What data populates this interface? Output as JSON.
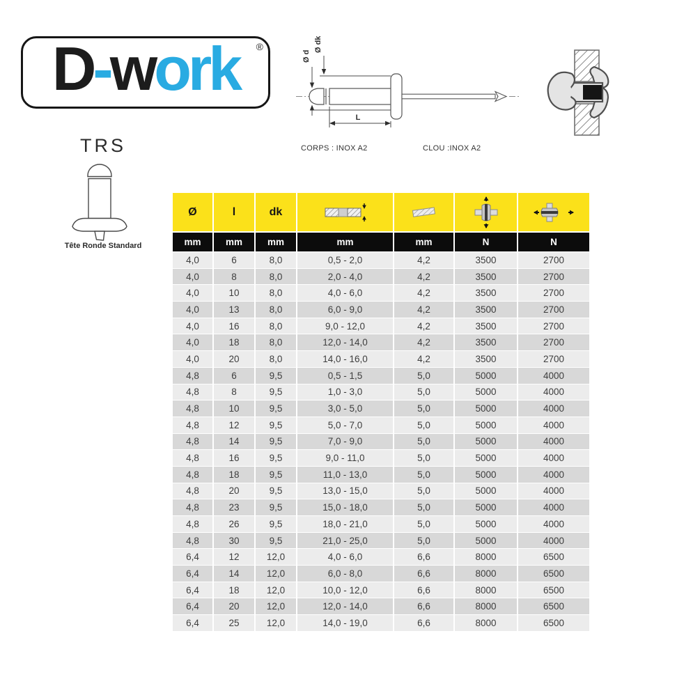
{
  "logo": {
    "part_d": "D",
    "part_hyphen": "-",
    "part_w": "w",
    "part_ork": "ork",
    "registered_mark": "®"
  },
  "product": {
    "code": "TRS",
    "head_type_caption": "Tête Ronde Standard"
  },
  "diagram": {
    "label_d": "Ø d",
    "label_dk": "Ø dk",
    "label_length": "L",
    "body_material": "CORPS : INOX A2",
    "nail_material": "CLOU :INOX A2"
  },
  "colors": {
    "accent_yellow": "#fbe11a",
    "header_black": "#0c0c0c",
    "row_light": "#ececec",
    "row_dark": "#d8d8d8",
    "logo_blue": "#29abe2",
    "logo_black": "#1c1c1c"
  },
  "table": {
    "columns": [
      {
        "label": "Ø",
        "unit": "mm",
        "icon": null
      },
      {
        "label": "l",
        "unit": "mm",
        "icon": null
      },
      {
        "label": "dk",
        "unit": "mm",
        "icon": null
      },
      {
        "label": "",
        "unit": "mm",
        "icon": "clamping-range-icon"
      },
      {
        "label": "",
        "unit": "mm",
        "icon": "drill-hole-diameter-icon"
      },
      {
        "label": "",
        "unit": "N",
        "icon": "shear-strength-icon"
      },
      {
        "label": "",
        "unit": "N",
        "icon": "tensile-strength-icon"
      }
    ],
    "rows": [
      [
        "4,0",
        "6",
        "8,0",
        "0,5 - 2,0",
        "4,2",
        "3500",
        "2700"
      ],
      [
        "4,0",
        "8",
        "8,0",
        "2,0 - 4,0",
        "4,2",
        "3500",
        "2700"
      ],
      [
        "4,0",
        "10",
        "8,0",
        "4,0 - 6,0",
        "4,2",
        "3500",
        "2700"
      ],
      [
        "4,0",
        "13",
        "8,0",
        "6,0 - 9,0",
        "4,2",
        "3500",
        "2700"
      ],
      [
        "4,0",
        "16",
        "8,0",
        "9,0 - 12,0",
        "4,2",
        "3500",
        "2700"
      ],
      [
        "4,0",
        "18",
        "8,0",
        "12,0 - 14,0",
        "4,2",
        "3500",
        "2700"
      ],
      [
        "4,0",
        "20",
        "8,0",
        "14,0 - 16,0",
        "4,2",
        "3500",
        "2700"
      ],
      [
        "4,8",
        "6",
        "9,5",
        "0,5 - 1,5",
        "5,0",
        "5000",
        "4000"
      ],
      [
        "4,8",
        "8",
        "9,5",
        "1,0 - 3,0",
        "5,0",
        "5000",
        "4000"
      ],
      [
        "4,8",
        "10",
        "9,5",
        "3,0 - 5,0",
        "5,0",
        "5000",
        "4000"
      ],
      [
        "4,8",
        "12",
        "9,5",
        "5,0 - 7,0",
        "5,0",
        "5000",
        "4000"
      ],
      [
        "4,8",
        "14",
        "9,5",
        "7,0 - 9,0",
        "5,0",
        "5000",
        "4000"
      ],
      [
        "4,8",
        "16",
        "9,5",
        "9,0 - 11,0",
        "5,0",
        "5000",
        "4000"
      ],
      [
        "4,8",
        "18",
        "9,5",
        "11,0 - 13,0",
        "5,0",
        "5000",
        "4000"
      ],
      [
        "4,8",
        "20",
        "9,5",
        "13,0 - 15,0",
        "5,0",
        "5000",
        "4000"
      ],
      [
        "4,8",
        "23",
        "9,5",
        "15,0 - 18,0",
        "5,0",
        "5000",
        "4000"
      ],
      [
        "4,8",
        "26",
        "9,5",
        "18,0 - 21,0",
        "5,0",
        "5000",
        "4000"
      ],
      [
        "4,8",
        "30",
        "9,5",
        "21,0 - 25,0",
        "5,0",
        "5000",
        "4000"
      ],
      [
        "6,4",
        "12",
        "12,0",
        "4,0 - 6,0",
        "6,6",
        "8000",
        "6500"
      ],
      [
        "6,4",
        "14",
        "12,0",
        "6,0 - 8,0",
        "6,6",
        "8000",
        "6500"
      ],
      [
        "6,4",
        "18",
        "12,0",
        "10,0 - 12,0",
        "6,6",
        "8000",
        "6500"
      ],
      [
        "6,4",
        "20",
        "12,0",
        "12,0 - 14,0",
        "6,6",
        "8000",
        "6500"
      ],
      [
        "6,4",
        "25",
        "12,0",
        "14,0 - 19,0",
        "6,6",
        "8000",
        "6500"
      ]
    ]
  }
}
